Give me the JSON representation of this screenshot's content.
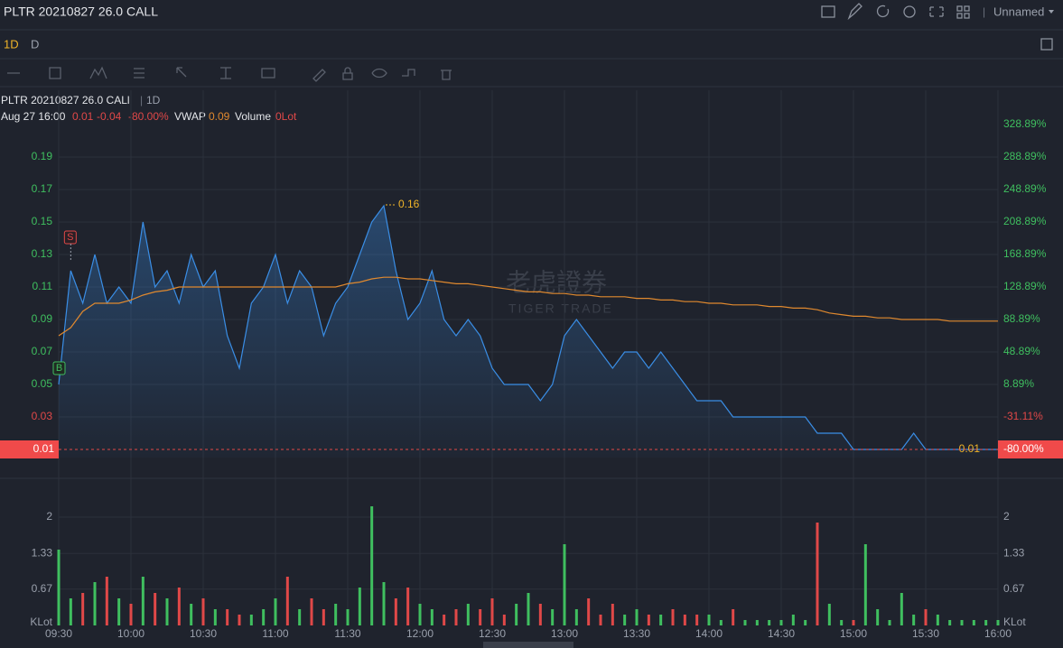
{
  "header": {
    "title": "PLTR 20210827 26.0 CALL",
    "layout": "Unnamed"
  },
  "tabs": [
    "1D",
    "D"
  ],
  "legend": {
    "symbol": "PLTR 20210827 26.0 CALl",
    "period": "1D",
    "time": "Aug 27 16:00",
    "close": "0.01",
    "change": "-0.04",
    "change_pct": "-80.00%",
    "vwap_label": "VWAP",
    "vwap": "0.09",
    "volume_label": "Volume",
    "volume": "0Lot"
  },
  "watermark": {
    "cn": "老虎證券",
    "en": "TIGER TRADE"
  },
  "markers": [
    "S",
    "B"
  ],
  "chart_data": [
    {
      "type": "line",
      "categories": [
        "09:30",
        null,
        null,
        null,
        null,
        null,
        "10:00",
        null,
        null,
        null,
        null,
        null,
        "10:30",
        null,
        null,
        null,
        null,
        null,
        "11:00",
        null,
        null,
        null,
        null,
        null,
        "11:30",
        null,
        null,
        null,
        null,
        null,
        "12:00",
        null,
        null,
        null,
        null,
        null,
        "12:30",
        null,
        null,
        null,
        null,
        null,
        "13:00",
        null,
        null,
        null,
        null,
        null,
        "13:30",
        null,
        null,
        null,
        null,
        null,
        "14:00",
        null,
        null,
        null,
        null,
        null,
        "14:30",
        null,
        null,
        null,
        null,
        null,
        "15:00",
        null,
        null,
        null,
        null,
        null,
        "15:30",
        null,
        null,
        null,
        null,
        null,
        "16:00"
      ],
      "series": [
        {
          "color": "#3a8ee6",
          "values": [
            0.05,
            0.12,
            0.1,
            0.13,
            0.1,
            0.11,
            0.1,
            0.15,
            0.11,
            0.12,
            0.1,
            0.13,
            0.11,
            0.12,
            0.08,
            0.06,
            0.1,
            0.11,
            0.13,
            0.1,
            0.12,
            0.11,
            0.08,
            0.1,
            0.11,
            0.13,
            0.15,
            0.16,
            0.12,
            0.09,
            0.1,
            0.12,
            0.09,
            0.08,
            0.09,
            0.08,
            0.06,
            0.05,
            0.05,
            0.05,
            0.04,
            0.05,
            0.08,
            0.09,
            0.08,
            0.07,
            0.06,
            0.07,
            0.07,
            0.06,
            0.07,
            0.06,
            0.05,
            0.04,
            0.04,
            0.04,
            0.03,
            0.03,
            0.03,
            0.03,
            0.03,
            0.03,
            0.03,
            0.02,
            0.02,
            0.02,
            0.01,
            0.01,
            0.01,
            0.01,
            0.01,
            0.02,
            0.01,
            0.01,
            0.01,
            0.01,
            0.01,
            0.01,
            0.01
          ]
        },
        {
          "name": "VWAP",
          "color": "#e0892e",
          "values": [
            0.08,
            0.085,
            0.095,
            0.1,
            0.1,
            0.1,
            0.102,
            0.105,
            0.107,
            0.108,
            0.11,
            0.11,
            0.11,
            0.11,
            0.11,
            0.11,
            0.11,
            0.11,
            0.11,
            0.11,
            0.11,
            0.11,
            0.11,
            0.11,
            0.112,
            0.113,
            0.115,
            0.116,
            0.116,
            0.115,
            0.115,
            0.114,
            0.113,
            0.112,
            0.112,
            0.111,
            0.11,
            0.109,
            0.108,
            0.107,
            0.107,
            0.106,
            0.106,
            0.105,
            0.105,
            0.104,
            0.104,
            0.104,
            0.103,
            0.103,
            0.102,
            0.102,
            0.101,
            0.101,
            0.1,
            0.1,
            0.099,
            0.099,
            0.099,
            0.098,
            0.098,
            0.097,
            0.097,
            0.096,
            0.094,
            0.093,
            0.092,
            0.092,
            0.091,
            0.091,
            0.09,
            0.09,
            0.09,
            0.09,
            0.089,
            0.089,
            0.089,
            0.089,
            0.089
          ]
        }
      ],
      "ylim": [
        0.005,
        0.215
      ],
      "yticks": [
        0.03,
        0.05,
        0.07,
        0.09,
        0.11,
        0.13,
        0.15,
        0.17,
        0.19
      ],
      "y2lim": [
        -81.11,
        338.89
      ],
      "y2ticks": [
        {
          "value": -31.11,
          "label": "-31.11%"
        },
        {
          "value": 8.89,
          "label": "8.89%"
        },
        {
          "value": 48.89,
          "label": "48.89%"
        },
        {
          "value": 88.89,
          "label": "88.89%"
        },
        {
          "value": 128.89,
          "label": "128.89%"
        },
        {
          "value": 168.89,
          "label": "168.89%"
        },
        {
          "value": 208.89,
          "label": "208.89%"
        },
        {
          "value": 248.89,
          "label": "248.89%"
        },
        {
          "value": 288.89,
          "label": "288.89%"
        },
        {
          "value": 328.89,
          "label": "328.89%"
        }
      ],
      "high": 0.16,
      "low": 0.01,
      "last": 0.01,
      "last_pct": {
        "value": -80,
        "label": "-80.00%"
      },
      "grid": true
    },
    {
      "type": "bar",
      "y_label": "KLot",
      "up_color": "#3fbf5f",
      "down_color": "#e04848",
      "values": [
        1.4,
        0.5,
        0.6,
        0.8,
        0.9,
        0.5,
        0.4,
        0.9,
        0.6,
        0.5,
        0.7,
        0.4,
        0.5,
        0.3,
        0.3,
        0.2,
        0.2,
        0.3,
        0.5,
        0.9,
        0.3,
        0.5,
        0.3,
        0.4,
        0.3,
        0.7,
        2.2,
        0.8,
        0.5,
        0.7,
        0.4,
        0.3,
        0.2,
        0.3,
        0.4,
        0.3,
        0.5,
        0.2,
        0.4,
        0.6,
        0.4,
        0.3,
        1.5,
        0.3,
        0.5,
        0.2,
        0.4,
        0.2,
        0.3,
        0.2,
        0.2,
        0.3,
        0.2,
        0.2,
        0.2,
        0.1,
        0.3,
        0.1,
        0.1,
        0.1,
        0.1,
        0.2,
        0.1,
        1.9,
        0.4,
        0.1,
        0.1,
        1.5,
        0.3,
        0.1,
        0.6,
        0.2,
        0.3,
        0.2,
        0.1,
        0.1,
        0.1,
        0.1,
        0.1
      ],
      "ylim": [
        0,
        2.55
      ],
      "yticks": [
        0.67,
        1.33,
        2.0
      ],
      "grid": true
    }
  ]
}
